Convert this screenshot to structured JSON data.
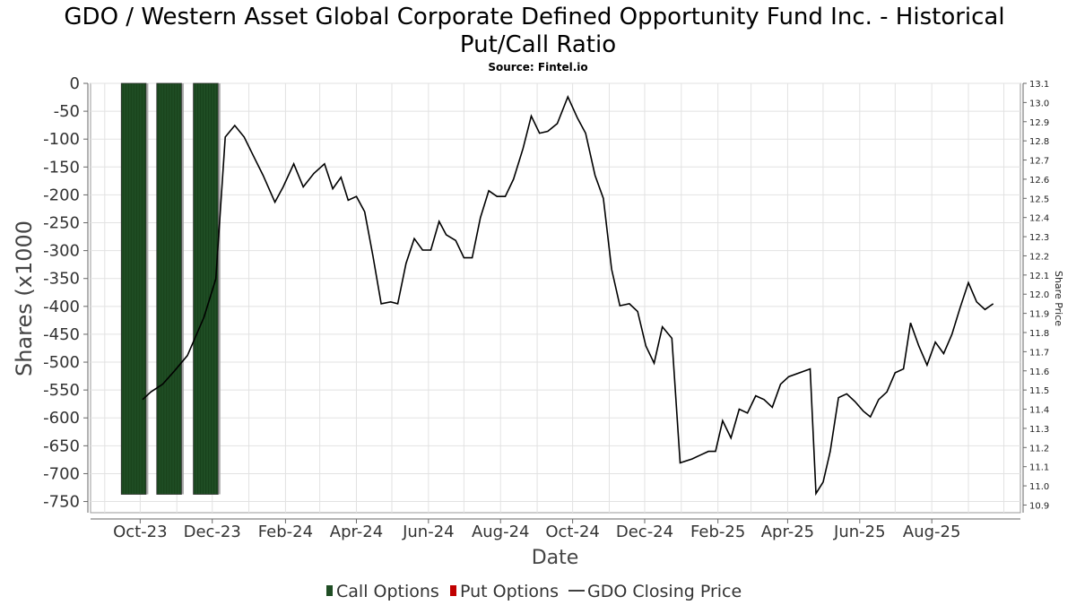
{
  "chart_data": {
    "type": "bar",
    "title": "GDO / Western Asset Global Corporate Defined Opportunity Fund Inc. - Historical Put/Call Ratio",
    "title_line1": "GDO / Western Asset Global Corporate Defined Opportunity Fund Inc. - Historical",
    "title_line2": "Put/Call Ratio",
    "subtitle": "Source: Fintel.io",
    "xlabel": "Date",
    "ylabel": "Shares (x1000",
    "y2label": "Share Price",
    "ylim": [
      -770,
      0
    ],
    "y2lim": [
      10.86,
      13.1
    ],
    "xlim": [
      "2023-08-20",
      "2025-10-15"
    ],
    "y_ticks": [
      0,
      -50,
      -100,
      -150,
      -200,
      -250,
      -300,
      -350,
      -400,
      -450,
      -500,
      -550,
      -600,
      -650,
      -700,
      -750
    ],
    "y_tick_labels": [
      "0",
      "-50",
      "-100",
      "-150",
      "-200",
      "-250",
      "-300",
      "-350",
      "-400",
      "-450",
      "-500",
      "-550",
      "-600",
      "-650",
      "-700",
      "-750"
    ],
    "y2_ticks": [
      13.1,
      13.0,
      12.9,
      12.8,
      12.7,
      12.6,
      12.5,
      12.4,
      12.3,
      12.2,
      12.1,
      12.0,
      11.9,
      11.8,
      11.7,
      11.6,
      11.5,
      11.4,
      11.3,
      11.2,
      11.1,
      11.0,
      10.9
    ],
    "y2_tick_labels": [
      "13.1",
      "13.0",
      "12.9",
      "12.8",
      "12.7",
      "12.6",
      "12.5",
      "12.4",
      "12.3",
      "12.2",
      "12.1",
      "12.0",
      "11.9",
      "11.8",
      "11.7",
      "11.6",
      "11.5",
      "11.4",
      "11.3",
      "11.2",
      "11.1",
      "11.0",
      "10.9"
    ],
    "x_ticks": [
      "2023-10-01",
      "2023-12-01",
      "2024-02-01",
      "2024-04-01",
      "2024-06-01",
      "2024-08-01",
      "2024-10-01",
      "2024-12-01",
      "2025-02-01",
      "2025-04-01",
      "2025-06-01",
      "2025-08-01"
    ],
    "x_tick_labels": [
      "Oct-23",
      "Dec-23",
      "Feb-24",
      "Apr-24",
      "Jun-24",
      "Aug-24",
      "Oct-24",
      "Dec-24",
      "Feb-25",
      "Apr-25",
      "Jun-25",
      "Aug-25"
    ],
    "grid": true,
    "legend_position": "bottom",
    "series": [
      {
        "name": "Call Options",
        "color": "#1f4d24",
        "bars": [
          {
            "start": "2023-09-15",
            "end": "2023-10-06",
            "value": -737
          },
          {
            "start": "2023-10-15",
            "end": "2023-11-05",
            "value": -737
          },
          {
            "start": "2023-11-15",
            "end": "2023-12-06",
            "value": -737
          }
        ]
      },
      {
        "name": "Put Options",
        "color": "#c00000",
        "bars": []
      },
      {
        "name": "GDO Closing Price",
        "color": "#000000",
        "axis": "right",
        "points": [
          [
            "2023-10-03",
            11.45
          ],
          [
            "2023-10-10",
            11.49
          ],
          [
            "2023-10-20",
            11.53
          ],
          [
            "2023-10-30",
            11.6
          ],
          [
            "2023-11-10",
            11.68
          ],
          [
            "2023-11-24",
            11.88
          ],
          [
            "2023-12-04",
            12.08
          ],
          [
            "2023-12-12",
            12.82
          ],
          [
            "2023-12-20",
            12.88
          ],
          [
            "2023-12-28",
            12.82
          ],
          [
            "2024-01-05",
            12.72
          ],
          [
            "2024-01-13",
            12.62
          ],
          [
            "2024-01-23",
            12.48
          ],
          [
            "2024-01-30",
            12.56
          ],
          [
            "2024-02-08",
            12.68
          ],
          [
            "2024-02-16",
            12.56
          ],
          [
            "2024-02-25",
            12.63
          ],
          [
            "2024-03-05",
            12.68
          ],
          [
            "2024-03-12",
            12.55
          ],
          [
            "2024-03-19",
            12.61
          ],
          [
            "2024-03-25",
            12.49
          ],
          [
            "2024-04-01",
            12.51
          ],
          [
            "2024-04-08",
            12.43
          ],
          [
            "2024-04-15",
            12.2
          ],
          [
            "2024-04-22",
            11.95
          ],
          [
            "2024-04-30",
            11.96
          ],
          [
            "2024-05-06",
            11.95
          ],
          [
            "2024-05-13",
            12.16
          ],
          [
            "2024-05-20",
            12.29
          ],
          [
            "2024-05-27",
            12.23
          ],
          [
            "2024-06-03",
            12.23
          ],
          [
            "2024-06-10",
            12.38
          ],
          [
            "2024-06-16",
            12.31
          ],
          [
            "2024-06-24",
            12.28
          ],
          [
            "2024-07-01",
            12.19
          ],
          [
            "2024-07-08",
            12.19
          ],
          [
            "2024-07-15",
            12.4
          ],
          [
            "2024-07-22",
            12.54
          ],
          [
            "2024-07-29",
            12.51
          ],
          [
            "2024-08-05",
            12.51
          ],
          [
            "2024-08-12",
            12.6
          ],
          [
            "2024-08-20",
            12.76
          ],
          [
            "2024-08-27",
            12.93
          ],
          [
            "2024-09-03",
            12.84
          ],
          [
            "2024-09-10",
            12.85
          ],
          [
            "2024-09-18",
            12.89
          ],
          [
            "2024-09-27",
            13.03
          ],
          [
            "2024-10-05",
            12.92
          ],
          [
            "2024-10-12",
            12.84
          ],
          [
            "2024-10-20",
            12.62
          ],
          [
            "2024-10-27",
            12.5
          ],
          [
            "2024-11-03",
            12.13
          ],
          [
            "2024-11-10",
            11.94
          ],
          [
            "2024-11-18",
            11.95
          ],
          [
            "2024-11-25",
            11.91
          ],
          [
            "2024-12-02",
            11.73
          ],
          [
            "2024-12-09",
            11.64
          ],
          [
            "2024-12-16",
            11.83
          ],
          [
            "2024-12-24",
            11.77
          ],
          [
            "2024-12-31",
            11.12
          ],
          [
            "2025-01-10",
            11.14
          ],
          [
            "2025-01-17",
            11.16
          ],
          [
            "2025-01-24",
            11.18
          ],
          [
            "2025-01-30",
            11.18
          ],
          [
            "2025-02-05",
            11.34
          ],
          [
            "2025-02-12",
            11.25
          ],
          [
            "2025-02-19",
            11.4
          ],
          [
            "2025-02-26",
            11.38
          ],
          [
            "2025-03-05",
            11.47
          ],
          [
            "2025-03-12",
            11.45
          ],
          [
            "2025-03-19",
            11.41
          ],
          [
            "2025-03-26",
            11.53
          ],
          [
            "2025-04-02",
            11.57
          ],
          [
            "2025-04-20",
            11.61
          ],
          [
            "2025-04-25",
            10.96
          ],
          [
            "2025-05-01",
            11.02
          ],
          [
            "2025-05-07",
            11.18
          ],
          [
            "2025-05-14",
            11.46
          ],
          [
            "2025-05-21",
            11.48
          ],
          [
            "2025-05-28",
            11.44
          ],
          [
            "2025-06-04",
            11.39
          ],
          [
            "2025-06-10",
            11.36
          ],
          [
            "2025-06-17",
            11.45
          ],
          [
            "2025-06-24",
            11.49
          ],
          [
            "2025-07-01",
            11.59
          ],
          [
            "2025-07-08",
            11.61
          ],
          [
            "2025-07-14",
            11.85
          ],
          [
            "2025-07-21",
            11.73
          ],
          [
            "2025-07-28",
            11.63
          ],
          [
            "2025-08-04",
            11.75
          ],
          [
            "2025-08-11",
            11.69
          ],
          [
            "2025-08-18",
            11.79
          ],
          [
            "2025-08-25",
            11.93
          ],
          [
            "2025-09-01",
            12.06
          ],
          [
            "2025-09-08",
            11.96
          ],
          [
            "2025-09-15",
            11.92
          ],
          [
            "2025-09-22",
            11.95
          ]
        ]
      }
    ]
  }
}
